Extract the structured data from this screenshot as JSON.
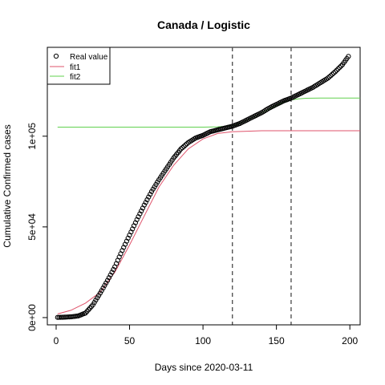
{
  "chart_data": {
    "type": "line",
    "title": "Canada / Logistic",
    "xlabel": "Days since 2020-03-11",
    "ylabel": "Cumulative Confirmed cases",
    "xlim": [
      -6,
      207
    ],
    "ylim": [
      -4000,
      149000
    ],
    "x_ticks": [
      0,
      50,
      100,
      150,
      200
    ],
    "x_tick_labels": [
      "0",
      "50",
      "100",
      "150",
      "200"
    ],
    "y_ticks": [
      0,
      50000,
      100000
    ],
    "y_tick_labels": [
      "0e+00",
      "5e+04",
      "1e+05"
    ],
    "vlines": [
      120,
      160
    ],
    "vline_style": "dashed",
    "legend": {
      "position": "top-left",
      "entries": [
        {
          "label": "Real value",
          "marker": "circle",
          "color": "#000000"
        },
        {
          "label": "fit1",
          "marker": "line",
          "color": "#DF536B"
        },
        {
          "label": "fit2",
          "marker": "line",
          "color": "#61D04F"
        }
      ]
    },
    "series": [
      {
        "name": "Real value",
        "kind": "points",
        "color": "#000000",
        "x": [
          1,
          5,
          10,
          15,
          20,
          25,
          30,
          35,
          40,
          45,
          50,
          55,
          60,
          65,
          70,
          75,
          80,
          85,
          90,
          95,
          100,
          105,
          110,
          115,
          120,
          125,
          130,
          135,
          140,
          145,
          150,
          155,
          160,
          165,
          170,
          175,
          180,
          185,
          190,
          195,
          199
        ],
        "y": [
          100,
          200,
          400,
          900,
          2500,
          7000,
          13500,
          20500,
          28000,
          37000,
          45500,
          54000,
          62000,
          69500,
          76000,
          82000,
          88000,
          93000,
          96500,
          99000,
          100500,
          102500,
          103500,
          104500,
          105500,
          107000,
          109000,
          111000,
          113000,
          115500,
          117500,
          119500,
          121000,
          123000,
          125000,
          127000,
          129500,
          132000,
          135500,
          139500,
          144000
        ]
      },
      {
        "name": "fit1",
        "kind": "line",
        "color": "#DF536B",
        "x": [
          1,
          10,
          20,
          30,
          40,
          50,
          60,
          70,
          80,
          90,
          100,
          110,
          120,
          140,
          160,
          180,
          207
        ],
        "y": [
          2000,
          4000,
          8000,
          14000,
          25000,
          40000,
          56000,
          72000,
          84000,
          93000,
          98500,
          101500,
          102500,
          103000,
          103000,
          103000,
          103000
        ]
      },
      {
        "name": "fit2",
        "kind": "line",
        "color": "#61D04F",
        "x": [
          1,
          40,
          80,
          100,
          110,
          120,
          125,
          130,
          135,
          140,
          145,
          150,
          155,
          160,
          165,
          170,
          180,
          207
        ],
        "y": [
          105000,
          105000,
          105000,
          105000,
          105200,
          105700,
          107000,
          108800,
          110800,
          112900,
          115000,
          117000,
          118800,
          120000,
          120600,
          120900,
          121000,
          121000
        ]
      }
    ]
  }
}
